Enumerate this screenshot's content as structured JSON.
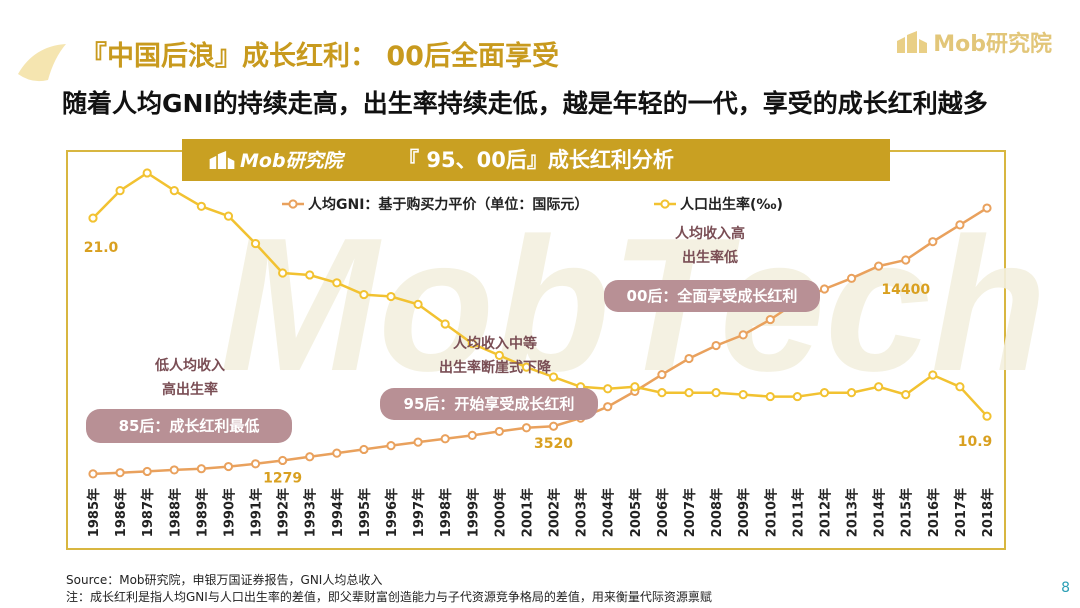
{
  "slide": {
    "title": "『中国后浪』成长红利： 00后全面享受",
    "subtitle": "随着人均GNI的持续走高，出生率持续走低，越是年轻的一代，享受的成长红利越多",
    "brand": "Mob研究院",
    "banner_title": "『 95、00后』成长红利分析",
    "banner_brand": "Mob研究院",
    "watermark": "MobTech",
    "footer_source": "Source：Mob研究院，申银万国证券报告，GNI人均总收入",
    "footer_note": "注：成长红利是指人均GNI与人口出生率的差值，即父辈财富创造能力与子代资源竞争格局的差值，用来衡量代际资源禀赋",
    "page_number": "8"
  },
  "annotations": {
    "low_income": [
      "低人均收入",
      "高出生率"
    ],
    "low_income_pill": "85后：成长红利最低",
    "mid_income": [
      "人均收入中等",
      "出生率断崖式下降"
    ],
    "mid_income_pill": "95后：开始享受成长红利",
    "high_income": [
      "人均收入高",
      "出生率低"
    ],
    "high_income_pill": "00后：全面享受成长红利"
  },
  "colors": {
    "gni_line": "#e9a15d",
    "birth_line": "#f2c231",
    "banner": "#c9a022",
    "title": "#c89a1e",
    "pill": "#b89095",
    "value_label": "#d9a020"
  },
  "chart_data": {
    "type": "line",
    "x": [
      "1985年",
      "1986年",
      "1987年",
      "1988年",
      "1989年",
      "1990年",
      "1991年",
      "1992年",
      "1993年",
      "1994年",
      "1995年",
      "1996年",
      "1997年",
      "1998年",
      "1999年",
      "2000年",
      "2001年",
      "2002年",
      "2003年",
      "2004年",
      "2005年",
      "2006年",
      "2007年",
      "2008年",
      "2009年",
      "2010年",
      "2011年",
      "2012年",
      "2013年",
      "2014年",
      "2015年",
      "2016年",
      "2017年",
      "2018年"
    ],
    "series": [
      {
        "name": "人均GNI：基于购买力平价（单位：国际元）",
        "axis": "left",
        "values": [
          400,
          480,
          560,
          660,
          740,
          880,
          1060,
          1279,
          1520,
          1760,
          2000,
          2250,
          2480,
          2700,
          2920,
          3180,
          3420,
          3520,
          4050,
          4800,
          5800,
          6900,
          7950,
          8800,
          9500,
          10500,
          11700,
          12500,
          13200,
          14000,
          14400,
          15600,
          16700,
          17800
        ]
      },
      {
        "name": "人口出生率(‰)",
        "axis": "right",
        "values": [
          21.0,
          22.4,
          23.3,
          22.4,
          21.6,
          21.1,
          19.7,
          18.2,
          18.1,
          17.7,
          17.1,
          17.0,
          16.6,
          15.6,
          14.6,
          14.0,
          13.4,
          12.9,
          12.4,
          12.3,
          12.4,
          12.1,
          12.1,
          12.1,
          12.0,
          11.9,
          11.9,
          12.1,
          12.1,
          12.4,
          12.0,
          13.0,
          12.4,
          10.9
        ]
      }
    ],
    "data_labels": [
      {
        "series": 0,
        "x": "1992年",
        "text": "1279"
      },
      {
        "series": 0,
        "x": "2002年",
        "text": "3520"
      },
      {
        "series": 0,
        "x": "2015年",
        "text": "14400"
      },
      {
        "series": 1,
        "x": "1985年",
        "text": "21.0"
      },
      {
        "series": 1,
        "x": "2018年",
        "text": "10.9"
      }
    ],
    "ylim_left": [
      0,
      18000
    ],
    "ylim_right": [
      0,
      26
    ],
    "legend_position": "top-center",
    "grid": false
  }
}
